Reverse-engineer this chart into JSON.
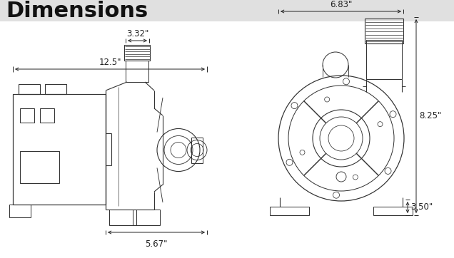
{
  "title": "Dimensions",
  "title_fontsize": 22,
  "title_bg_color": "#e0e0e0",
  "bg_color": "#ffffff",
  "line_color": "#333333",
  "dim_color": "#222222",
  "lw": 0.8,
  "dim_lw": 0.7,
  "side_dim_125": "12.5\"",
  "side_dim_332": "3.32\"",
  "side_dim_567": "5.67\"",
  "front_dim_683": "6.83\"",
  "front_dim_825": "8.25\"",
  "front_dim_350": "3.50\""
}
